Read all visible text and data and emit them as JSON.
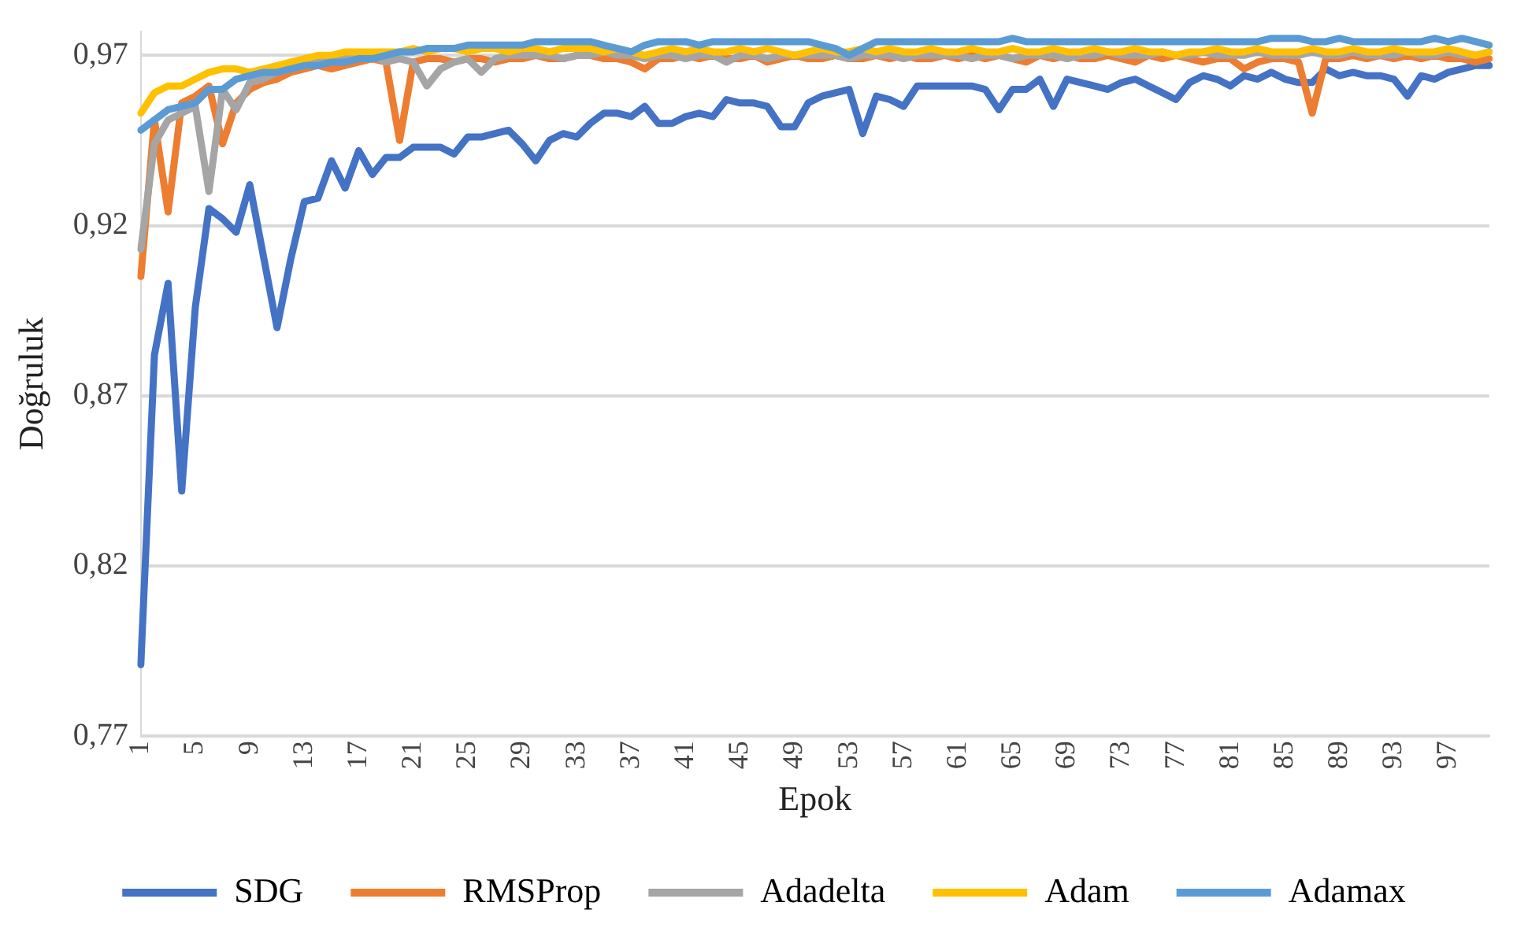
{
  "chart_data": {
    "type": "line",
    "xlabel": "Epok",
    "ylabel": "Doğruluk",
    "categories": [
      "1",
      null,
      null,
      null,
      "5",
      null,
      null,
      null,
      "9",
      null,
      null,
      null,
      "13",
      null,
      null,
      null,
      "17",
      null,
      null,
      null,
      "21",
      null,
      null,
      null,
      "25",
      null,
      null,
      null,
      "29",
      null,
      null,
      null,
      "33",
      null,
      null,
      null,
      "37",
      null,
      null,
      null,
      "41",
      null,
      null,
      null,
      "45",
      null,
      null,
      null,
      "49",
      null,
      null,
      null,
      "53",
      null,
      null,
      null,
      "57",
      null,
      null,
      null,
      "61",
      null,
      null,
      null,
      "65",
      null,
      null,
      null,
      "69",
      null,
      null,
      null,
      "73",
      null,
      null,
      null,
      "77",
      null,
      null,
      null,
      "81",
      null,
      null,
      null,
      "85",
      null,
      null,
      null,
      "89",
      null,
      null,
      null,
      "93",
      null,
      null,
      null,
      "97",
      null,
      null,
      null
    ],
    "ylim": [
      0.77,
      0.977
    ],
    "yticks": [
      {
        "value": 0.77,
        "label": "0,77"
      },
      {
        "value": 0.82,
        "label": "0,82"
      },
      {
        "value": 0.87,
        "label": "0,87"
      },
      {
        "value": 0.92,
        "label": "0,92"
      },
      {
        "value": 0.97,
        "label": "0,97"
      }
    ],
    "grid": "y",
    "legend": "bottom",
    "marker": "none",
    "line_style": "solid",
    "series": [
      {
        "name": "SDG",
        "color": "#4472c4",
        "values": [
          0.791,
          0.882,
          0.903,
          0.842,
          0.896,
          0.925,
          0.922,
          0.918,
          0.932,
          0.911,
          0.89,
          0.91,
          0.927,
          0.928,
          0.939,
          0.931,
          0.942,
          0.935,
          0.94,
          0.94,
          0.943,
          0.943,
          0.943,
          0.941,
          0.946,
          0.946,
          0.947,
          0.948,
          0.944,
          0.939,
          0.945,
          0.947,
          0.946,
          0.95,
          0.953,
          0.953,
          0.952,
          0.955,
          0.95,
          0.95,
          0.952,
          0.953,
          0.952,
          0.957,
          0.956,
          0.956,
          0.955,
          0.949,
          0.949,
          0.956,
          0.958,
          0.959,
          0.96,
          0.947,
          0.958,
          0.957,
          0.955,
          0.961,
          0.961,
          0.961,
          0.961,
          0.961,
          0.96,
          0.954,
          0.96,
          0.96,
          0.963,
          0.955,
          0.963,
          0.962,
          0.961,
          0.96,
          0.962,
          0.963,
          0.961,
          0.959,
          0.957,
          0.962,
          0.964,
          0.963,
          0.961,
          0.964,
          0.963,
          0.965,
          0.963,
          0.962,
          0.962,
          0.966,
          0.964,
          0.965,
          0.964,
          0.964,
          0.963,
          0.958,
          0.964,
          0.963,
          0.965,
          0.966,
          0.967,
          0.967
        ]
      },
      {
        "name": "RMSProp",
        "color": "#ed7d31",
        "values": [
          0.905,
          0.951,
          0.924,
          0.956,
          0.958,
          0.961,
          0.944,
          0.956,
          0.96,
          0.962,
          0.963,
          0.965,
          0.966,
          0.967,
          0.966,
          0.967,
          0.968,
          0.969,
          0.968,
          0.945,
          0.968,
          0.969,
          0.969,
          0.968,
          0.969,
          0.969,
          0.968,
          0.969,
          0.969,
          0.97,
          0.969,
          0.969,
          0.97,
          0.97,
          0.969,
          0.969,
          0.968,
          0.966,
          0.969,
          0.969,
          0.97,
          0.969,
          0.97,
          0.969,
          0.969,
          0.97,
          0.968,
          0.969,
          0.97,
          0.969,
          0.969,
          0.97,
          0.969,
          0.969,
          0.97,
          0.969,
          0.97,
          0.969,
          0.969,
          0.97,
          0.969,
          0.97,
          0.969,
          0.97,
          0.969,
          0.968,
          0.97,
          0.969,
          0.97,
          0.969,
          0.969,
          0.97,
          0.969,
          0.968,
          0.97,
          0.969,
          0.97,
          0.969,
          0.968,
          0.969,
          0.969,
          0.966,
          0.968,
          0.969,
          0.969,
          0.968,
          0.953,
          0.969,
          0.969,
          0.97,
          0.969,
          0.97,
          0.969,
          0.97,
          0.969,
          0.97,
          0.969,
          0.969,
          0.968,
          0.969
        ]
      },
      {
        "name": "Adadelta",
        "color": "#a5a5a5",
        "values": [
          0.913,
          0.944,
          0.951,
          0.953,
          0.955,
          0.93,
          0.96,
          0.954,
          0.962,
          0.963,
          0.965,
          0.966,
          0.967,
          0.968,
          0.969,
          0.969,
          0.97,
          0.97,
          0.968,
          0.969,
          0.968,
          0.961,
          0.966,
          0.968,
          0.969,
          0.965,
          0.969,
          0.97,
          0.97,
          0.97,
          0.97,
          0.969,
          0.97,
          0.97,
          0.971,
          0.97,
          0.97,
          0.969,
          0.97,
          0.97,
          0.969,
          0.97,
          0.97,
          0.968,
          0.97,
          0.97,
          0.969,
          0.97,
          0.97,
          0.97,
          0.97,
          0.97,
          0.969,
          0.97,
          0.97,
          0.97,
          0.969,
          0.97,
          0.97,
          0.97,
          0.97,
          0.969,
          0.97,
          0.97,
          0.969,
          0.97,
          0.97,
          0.97,
          0.969,
          0.97,
          0.97,
          0.971,
          0.97,
          0.97,
          0.97,
          0.971,
          0.97,
          0.97,
          0.971,
          0.97,
          0.97,
          0.97,
          0.971,
          0.97,
          0.97,
          0.97,
          0.971,
          0.97,
          0.97,
          0.971,
          0.97,
          0.97,
          0.97,
          0.971,
          0.97,
          0.97,
          0.971,
          0.97,
          0.97,
          0.971
        ]
      },
      {
        "name": "Adam",
        "color": "#ffc000",
        "values": [
          0.953,
          0.959,
          0.961,
          0.961,
          0.963,
          0.965,
          0.966,
          0.966,
          0.965,
          0.966,
          0.967,
          0.968,
          0.969,
          0.97,
          0.97,
          0.971,
          0.971,
          0.971,
          0.971,
          0.971,
          0.972,
          0.971,
          0.972,
          0.972,
          0.971,
          0.972,
          0.972,
          0.971,
          0.972,
          0.972,
          0.971,
          0.972,
          0.972,
          0.972,
          0.971,
          0.972,
          0.971,
          0.97,
          0.971,
          0.972,
          0.971,
          0.972,
          0.971,
          0.971,
          0.972,
          0.971,
          0.972,
          0.971,
          0.97,
          0.971,
          0.972,
          0.971,
          0.971,
          0.972,
          0.971,
          0.972,
          0.971,
          0.971,
          0.972,
          0.971,
          0.971,
          0.972,
          0.971,
          0.971,
          0.972,
          0.971,
          0.971,
          0.972,
          0.971,
          0.971,
          0.972,
          0.971,
          0.971,
          0.972,
          0.971,
          0.971,
          0.97,
          0.971,
          0.971,
          0.972,
          0.971,
          0.971,
          0.972,
          0.971,
          0.971,
          0.971,
          0.972,
          0.971,
          0.971,
          0.972,
          0.971,
          0.971,
          0.972,
          0.971,
          0.971,
          0.971,
          0.972,
          0.971,
          0.97,
          0.971
        ]
      },
      {
        "name": "Adamax",
        "color": "#5b9bd5",
        "values": [
          0.948,
          0.951,
          0.954,
          0.955,
          0.956,
          0.96,
          0.96,
          0.963,
          0.964,
          0.965,
          0.965,
          0.966,
          0.967,
          0.967,
          0.968,
          0.968,
          0.969,
          0.969,
          0.97,
          0.971,
          0.971,
          0.972,
          0.972,
          0.972,
          0.973,
          0.973,
          0.973,
          0.973,
          0.973,
          0.974,
          0.974,
          0.974,
          0.974,
          0.974,
          0.973,
          0.972,
          0.971,
          0.973,
          0.974,
          0.974,
          0.974,
          0.973,
          0.974,
          0.974,
          0.974,
          0.974,
          0.974,
          0.974,
          0.974,
          0.974,
          0.973,
          0.972,
          0.97,
          0.972,
          0.974,
          0.974,
          0.974,
          0.974,
          0.974,
          0.974,
          0.974,
          0.974,
          0.974,
          0.974,
          0.975,
          0.974,
          0.974,
          0.974,
          0.974,
          0.974,
          0.974,
          0.974,
          0.974,
          0.974,
          0.974,
          0.974,
          0.974,
          0.974,
          0.974,
          0.974,
          0.974,
          0.974,
          0.974,
          0.975,
          0.975,
          0.975,
          0.974,
          0.974,
          0.975,
          0.974,
          0.974,
          0.974,
          0.974,
          0.974,
          0.974,
          0.975,
          0.974,
          0.975,
          0.974,
          0.973
        ]
      }
    ]
  }
}
